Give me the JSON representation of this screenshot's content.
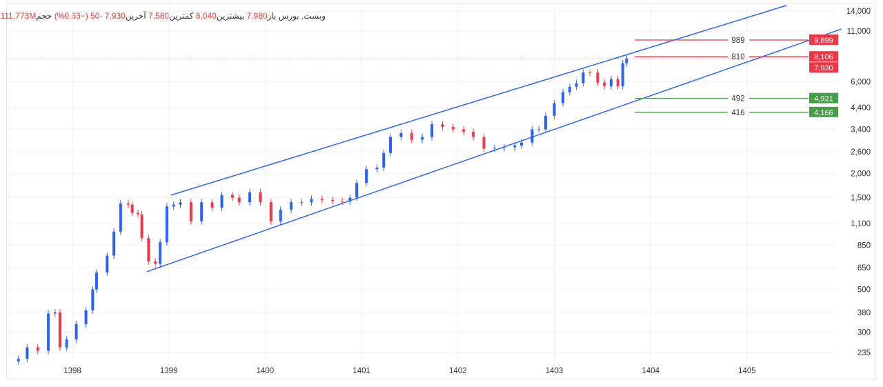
{
  "legend": {
    "symbol": "وبست, بورس",
    "open_label": "باز",
    "open": "7,980",
    "high_label": "بیشترین",
    "high": "8,040",
    "low_label": "کمترین",
    "low": "7,580",
    "close_label": "آخرین",
    "close": "7,930",
    "change": "-50",
    "change_pct": "(−0.63%)",
    "volume_label": "حجم",
    "volume": "111.773M"
  },
  "colors": {
    "up": "#2962ff",
    "down": "#f23645",
    "channel": "#2962ff",
    "resistance": "#f23645",
    "support": "#43a047",
    "grid": "#f0f0f0"
  },
  "chart_data": {
    "type": "candlestick",
    "y_scale": "log",
    "ylim": [
      220,
      15000
    ],
    "xlim": [
      1397.35,
      1406.0
    ],
    "grid": true,
    "y_ticks": [
      14000,
      11000,
      6000,
      4400,
      3400,
      2600,
      2000,
      1500,
      1100,
      850,
      650,
      500,
      380,
      300,
      235
    ],
    "y_tick_labels": [
      "14,000",
      "11,000",
      "6,000",
      "4,400",
      "3,400",
      "2,600",
      "2,000",
      "1,500",
      "1,100",
      "850",
      "650",
      "500",
      "380",
      "300",
      "235"
    ],
    "x_ticks": [
      1398,
      1399,
      1400,
      1401,
      1402,
      1403,
      1404,
      1405
    ],
    "x_tick_labels": [
      "1398",
      "1399",
      "1400",
      "1401",
      "1402",
      "1403",
      "1404",
      "1405"
    ],
    "x": [
      1397.44,
      1397.53,
      1397.64,
      1397.75,
      1397.82,
      1397.87,
      1397.94,
      1398.04,
      1398.14,
      1398.21,
      1398.25,
      1398.36,
      1398.43,
      1398.5,
      1398.58,
      1398.62,
      1398.68,
      1398.72,
      1398.79,
      1398.86,
      1398.91,
      1398.98,
      1399.05,
      1399.12,
      1399.23,
      1399.34,
      1399.45,
      1399.55,
      1399.66,
      1399.73,
      1399.84,
      1399.95,
      1400.06,
      1400.16,
      1400.27,
      1400.38,
      1400.48,
      1400.59,
      1400.7,
      1400.8,
      1400.88,
      1400.95,
      1401.05,
      1401.16,
      1401.23,
      1401.3,
      1401.41,
      1401.52,
      1401.63,
      1401.73,
      1401.84,
      1401.95,
      1402.06,
      1402.16,
      1402.27,
      1402.38,
      1402.48,
      1402.59,
      1402.66,
      1402.77,
      1402.84,
      1402.91,
      1403.0,
      1403.09,
      1403.16,
      1403.23,
      1403.3,
      1403.37,
      1403.45,
      1403.52,
      1403.59,
      1403.66,
      1403.71,
      1403.75
    ],
    "close": [
      218,
      250,
      240,
      375,
      380,
      250,
      275,
      330,
      390,
      500,
      612,
      750,
      1000,
      1400,
      1380,
      1250,
      1230,
      925,
      700,
      680,
      880,
      1350,
      1380,
      1420,
      1130,
      1420,
      1330,
      1550,
      1500,
      1420,
      1600,
      1420,
      1130,
      1300,
      1420,
      1420,
      1480,
      1460,
      1440,
      1430,
      1500,
      1790,
      2110,
      2150,
      2560,
      3100,
      3250,
      3000,
      3100,
      3610,
      3500,
      3400,
      3300,
      3100,
      2700,
      2720,
      2740,
      2800,
      2900,
      3400,
      3400,
      4000,
      4650,
      5300,
      5650,
      5900,
      6710,
      6700,
      5950,
      5700,
      6200,
      5700,
      7500,
      7930
    ],
    "channels": [
      {
        "from": [
          1399.02,
          1545
        ],
        "to": [
          1405.41,
          14970
        ]
      },
      {
        "from": [
          1398.77,
          618
        ],
        "to": [
          1405.98,
          11290
        ]
      }
    ],
    "levels": [
      {
        "value": 9899,
        "label": "989",
        "tag": "9,899",
        "kind": "resistance"
      },
      {
        "value": 8106,
        "label": "810",
        "tag": "8,106",
        "kind": "resistance"
      },
      {
        "value": 4921,
        "label": "492",
        "tag": "4,921",
        "kind": "support"
      },
      {
        "value": 4166,
        "label": "416",
        "tag": "4,166",
        "kind": "support"
      }
    ],
    "last_price": {
      "value": 7930,
      "tag": "7,930"
    }
  }
}
